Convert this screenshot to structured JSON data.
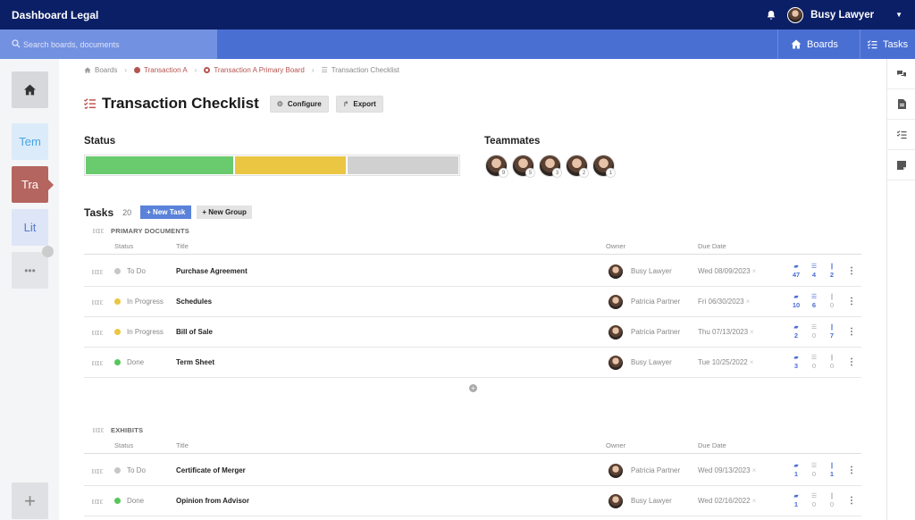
{
  "app": {
    "title": "Dashboard Legal",
    "user": "Busy Lawyer"
  },
  "search": {
    "placeholder": "Search boards, documents"
  },
  "nav": {
    "boards": "Boards",
    "tasks": "Tasks"
  },
  "leftbar": {
    "items": [
      "Tem",
      "Tra",
      "Lit",
      "•••"
    ],
    "add": "+"
  },
  "breadcrumb": [
    "Boards",
    "Transaction A",
    "Transaction A Primary Board",
    "Transaction Checklist"
  ],
  "page": {
    "title": "Transaction Checklist",
    "configure": "Configure",
    "export": "Export"
  },
  "status": {
    "label": "Status",
    "segments": [
      {
        "name": "Done",
        "fraction": 0.4,
        "color": "#6acb6e"
      },
      {
        "name": "In Progress",
        "fraction": 0.3,
        "color": "#eac643"
      },
      {
        "name": "To Do",
        "fraction": 0.3,
        "color": "#d0d0d0"
      }
    ]
  },
  "teammates": {
    "label": "Teammates",
    "counts": [
      "9",
      "5",
      "3",
      "2",
      "1"
    ]
  },
  "tasks": {
    "title": "Tasks",
    "count": "20",
    "new_task": "+ New Task",
    "new_group": "+ New Group"
  },
  "columns": {
    "status": "Status",
    "title": "Title",
    "owner": "Owner",
    "due": "Due Date"
  },
  "colors": {
    "todo": "#c7c7c7",
    "inprogress": "#eac643",
    "done": "#58c65c",
    "accent": "#4a6fd3"
  },
  "groups": [
    {
      "name": "PRIMARY DOCUMENTS",
      "rows": [
        {
          "status": "To Do",
          "title": "Purchase Agreement",
          "owner": "Busy Lawyer",
          "due": "Wed 08/09/2023",
          "comments": "47",
          "checklist": "4",
          "attachments": "2"
        },
        {
          "status": "In Progress",
          "title": "Schedules",
          "owner": "Patricia Partner",
          "due": "Fri 06/30/2023",
          "comments": "10",
          "checklist": "6",
          "attachments": "0"
        },
        {
          "status": "In Progress",
          "title": "Bill of Sale",
          "owner": "Patricia Partner",
          "due": "Thu 07/13/2023",
          "comments": "2",
          "checklist": "0",
          "attachments": "7"
        },
        {
          "status": "Done",
          "title": "Term Sheet",
          "owner": "Busy Lawyer",
          "due": "Tue 10/25/2022",
          "comments": "3",
          "checklist": "0",
          "attachments": "0"
        }
      ]
    },
    {
      "name": "EXHIBITS",
      "rows": [
        {
          "status": "To Do",
          "title": "Certificate of Merger",
          "owner": "Patricia Partner",
          "due": "Wed 09/13/2023",
          "comments": "1",
          "checklist": "0",
          "attachments": "1"
        },
        {
          "status": "Done",
          "title": "Opinion from Advisor",
          "owner": "Busy Lawyer",
          "due": "Wed 02/16/2022",
          "comments": "1",
          "checklist": "0",
          "attachments": "0"
        }
      ]
    }
  ]
}
